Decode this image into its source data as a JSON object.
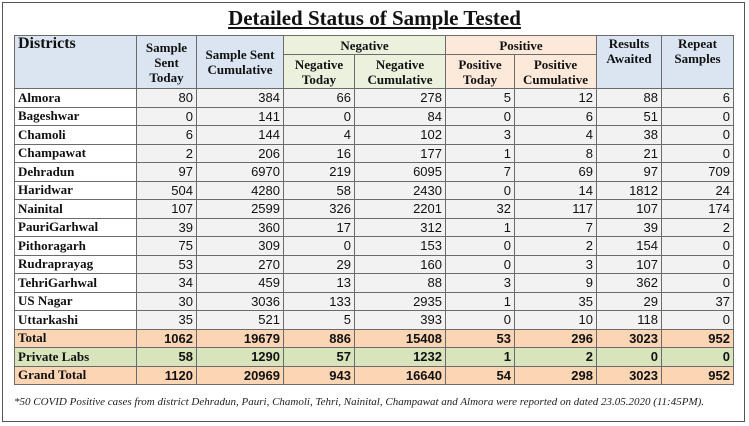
{
  "title": "Detailed Status of Sample Tested",
  "headers": {
    "districts": "Districts",
    "sample_sent_today": "Sample Sent Today",
    "sample_sent_cumulative": "Sample Sent Cumulative",
    "negative": "Negative",
    "negative_today": "Negative Today",
    "negative_cumulative": "Negative Cumulative",
    "positive": "Positive",
    "positive_today": "Positive Today",
    "positive_cumulative": "Positive Cumulative",
    "results_awaited": "Results Awaited",
    "repeat_samples": "Repeat Samples"
  },
  "rows": [
    [
      "Almora",
      "80",
      "384",
      "66",
      "278",
      "5",
      "12",
      "88",
      "6"
    ],
    [
      "Bageshwar",
      "0",
      "141",
      "0",
      "84",
      "0",
      "6",
      "51",
      "0"
    ],
    [
      "Chamoli",
      "6",
      "144",
      "4",
      "102",
      "3",
      "4",
      "38",
      "0"
    ],
    [
      "Champawat",
      "2",
      "206",
      "16",
      "177",
      "1",
      "8",
      "21",
      "0"
    ],
    [
      "Dehradun",
      "97",
      "6970",
      "219",
      "6095",
      "7",
      "69",
      "97",
      "709"
    ],
    [
      "Haridwar",
      "504",
      "4280",
      "58",
      "2430",
      "0",
      "14",
      "1812",
      "24"
    ],
    [
      "Nainital",
      "107",
      "2599",
      "326",
      "2201",
      "32",
      "117",
      "107",
      "174"
    ],
    [
      "PauriGarhwal",
      "39",
      "360",
      "17",
      "312",
      "1",
      "7",
      "39",
      "2"
    ],
    [
      "Pithoragarh",
      "75",
      "309",
      "0",
      "153",
      "0",
      "2",
      "154",
      "0"
    ],
    [
      "Rudraprayag",
      "53",
      "270",
      "29",
      "160",
      "0",
      "3",
      "107",
      "0"
    ],
    [
      "TehriGarhwal",
      "34",
      "459",
      "13",
      "88",
      "3",
      "9",
      "362",
      "0"
    ],
    [
      "US Nagar",
      "30",
      "3036",
      "133",
      "2935",
      "1",
      "35",
      "29",
      "37"
    ],
    [
      "Uttarkashi",
      "35",
      "521",
      "5",
      "393",
      "0",
      "10",
      "118",
      "0"
    ]
  ],
  "total": [
    "Total",
    "1062",
    "19679",
    "886",
    "15408",
    "53",
    "296",
    "3023",
    "952"
  ],
  "private_labs": [
    "Private Labs",
    "58",
    "1290",
    "57",
    "1232",
    "1",
    "2",
    "0",
    "0"
  ],
  "grand_total": [
    "Grand Total",
    "1120",
    "20969",
    "943",
    "16640",
    "54",
    "298",
    "3023",
    "952"
  ],
  "footnote": "*50 COVID Positive cases from district Dehradun, Pauri, Chamoli, Tehri, Nainital, Champawat and Almora were reported on dated 23.05.2020 (11:45PM).",
  "colors": {
    "header_blue": "#dbe5f1",
    "header_green": "#ebf1dd",
    "header_orange": "#fde9d9",
    "total_row": "#fcd5b4",
    "private_labs_row": "#d8e4bc"
  }
}
